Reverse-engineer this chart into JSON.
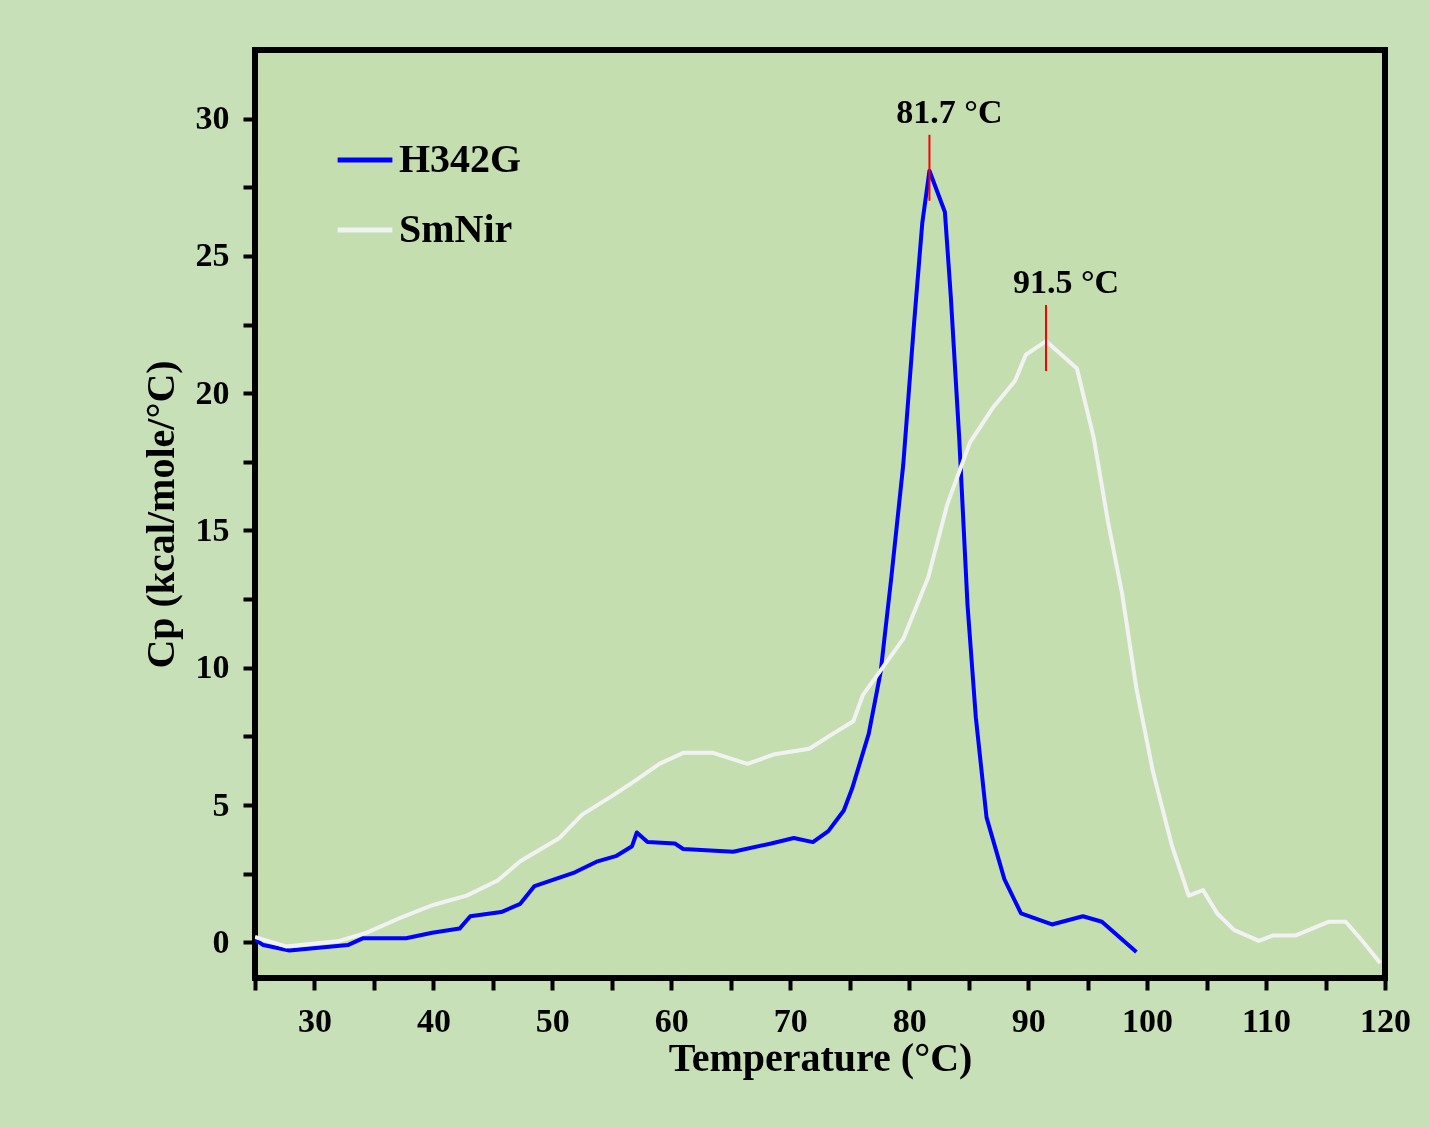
{
  "chart_data": {
    "type": "line",
    "xlabel": "Temperature (°C)",
    "ylabel": "Cp (kcal/mole/°C)",
    "xlim": [
      25,
      120
    ],
    "ylim": [
      -1.3,
      32.5
    ],
    "xticks": [
      {
        "value": 25,
        "label": null
      },
      30,
      {
        "value": 35,
        "label": null
      },
      40,
      {
        "value": 45,
        "label": null
      },
      50,
      {
        "value": 55,
        "label": null
      },
      60,
      {
        "value": 65,
        "label": null
      },
      70,
      {
        "value": 75,
        "label": null
      },
      80,
      {
        "value": 85,
        "label": null
      },
      90,
      {
        "value": 95,
        "label": null
      },
      100,
      {
        "value": 105,
        "label": null
      },
      110,
      {
        "value": 115,
        "label": null
      },
      120
    ],
    "yticks": [
      0,
      {
        "value": 2.5,
        "label": null
      },
      5,
      {
        "value": 7.5,
        "label": null
      },
      10,
      {
        "value": 12.5,
        "label": null
      },
      15,
      {
        "value": 17.5,
        "label": null
      },
      20,
      {
        "value": 22.5,
        "label": null
      },
      25,
      {
        "value": 27.5,
        "label": null
      },
      30
    ],
    "grid": false,
    "legend": "top left",
    "marker": "none",
    "line_style": "solid",
    "annotations": [
      {
        "text": "81.7 °C",
        "x": 81.7,
        "y": 28.1
      },
      {
        "text": "91.5 °C",
        "x": 91.5,
        "y": 21.9
      }
    ],
    "series": [
      {
        "name": "H342G",
        "color": "#0000ff",
        "x": [
          25,
          25.7,
          27.9,
          32.8,
          34.1,
          37.7,
          39.9,
          42.2,
          43.1,
          45.7,
          47.3,
          48.5,
          51.9,
          53.8,
          55.4,
          56.7,
          57.1,
          58.0,
          60.3,
          61.0,
          65.2,
          68.4,
          70.3,
          71.9,
          73.2,
          74.5,
          75.2,
          76.6,
          77.6,
          78.5,
          79.5,
          80.4,
          81.1,
          81.7,
          83.0,
          83.5,
          84.2,
          84.9,
          85.6,
          86.5,
          88.0,
          89.4,
          92.0,
          94.6,
          96.2,
          99.1
        ],
        "values": [
          0.1,
          -0.1,
          -0.3,
          -0.1,
          0.15,
          0.15,
          0.35,
          0.5,
          0.95,
          1.1,
          1.4,
          2.05,
          2.55,
          2.95,
          3.15,
          3.5,
          4.0,
          3.65,
          3.6,
          3.4,
          3.3,
          3.6,
          3.8,
          3.65,
          4.05,
          4.8,
          5.6,
          7.6,
          9.85,
          13.3,
          17.4,
          22.5,
          26.2,
          28.1,
          26.6,
          23.5,
          18.4,
          12.3,
          8.2,
          4.55,
          2.3,
          1.05,
          0.65,
          0.95,
          0.75,
          -0.35
        ]
      },
      {
        "name": "SmNir",
        "color": "#f2f2f2",
        "x": [
          25,
          25.7,
          27.6,
          32.1,
          34.4,
          37.0,
          39.9,
          42.8,
          45.4,
          47.3,
          50.6,
          52.5,
          55.1,
          57.0,
          59.0,
          61.0,
          63.5,
          66.4,
          68.7,
          71.6,
          73.6,
          75.3,
          76.1,
          79.5,
          81.6,
          83.2,
          85.1,
          87.0,
          88.9,
          89.8,
          91.5,
          94.1,
          95.5,
          96.7,
          97.9,
          99.1,
          100.5,
          102.1,
          103.5,
          104.7,
          105.9,
          107.3,
          109.4,
          110.6,
          112.5,
          115.3,
          116.7,
          118.1,
          119.6
        ],
        "values": [
          0.2,
          0.1,
          -0.15,
          0.05,
          0.35,
          0.85,
          1.35,
          1.7,
          2.25,
          2.95,
          3.8,
          4.65,
          5.35,
          5.9,
          6.5,
          6.9,
          6.9,
          6.5,
          6.85,
          7.05,
          7.6,
          8.05,
          9.0,
          11.05,
          13.3,
          15.95,
          18.2,
          19.45,
          20.45,
          21.4,
          21.9,
          20.9,
          18.4,
          15.35,
          12.7,
          9.25,
          6.2,
          3.5,
          1.7,
          1.9,
          1.05,
          0.45,
          0.05,
          0.25,
          0.25,
          0.75,
          0.75,
          0.05,
          -0.75
        ]
      }
    ]
  }
}
